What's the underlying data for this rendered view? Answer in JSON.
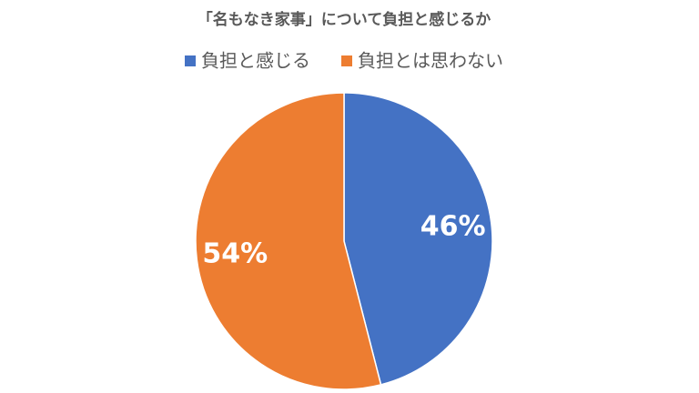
{
  "chart_data": {
    "type": "pie",
    "title": "「名もなき家事」について負担と感じるか",
    "categories": [
      "負担と感じる",
      "負担とは思わない"
    ],
    "values": [
      46,
      54
    ],
    "value_labels": [
      "46%",
      "54%"
    ],
    "colors": [
      "#4472c4",
      "#ed7d31"
    ],
    "legend": "top"
  }
}
